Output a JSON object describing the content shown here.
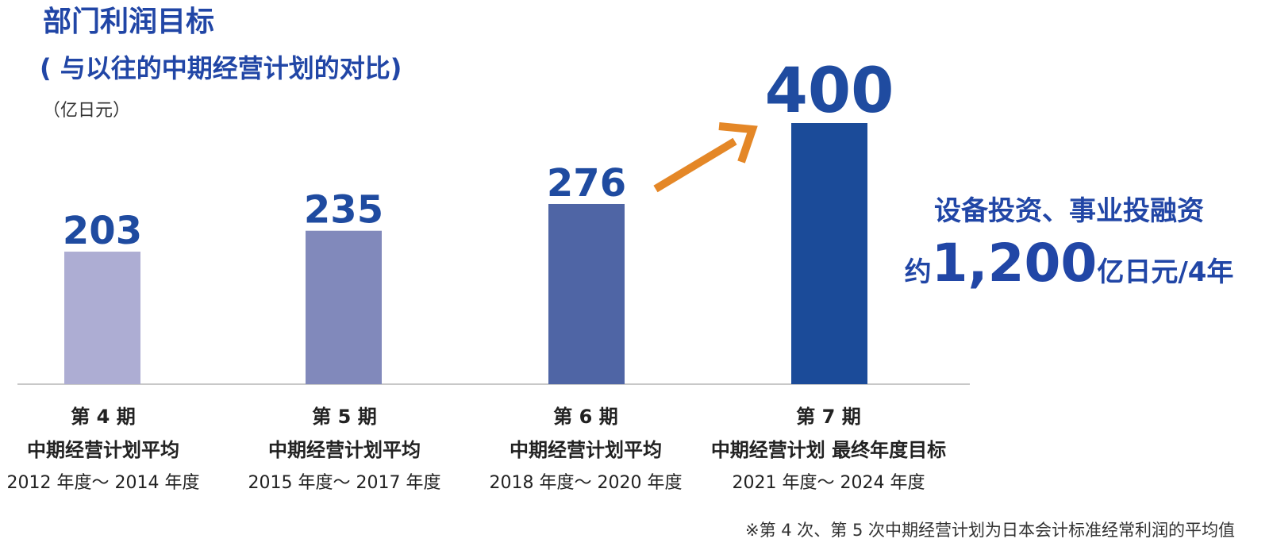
{
  "header": {
    "title": "部门利润目标",
    "subtitle": "( 与以往的中期经营计划的对比)",
    "unit": "（亿日元）"
  },
  "chart_data": {
    "type": "bar",
    "title": "部门利润目标",
    "subtitle": "( 与以往的中期经营计划的对比)",
    "unit": "（亿日元）",
    "categories": [
      {
        "line1": "第 4 期",
        "line2": "中期经营计划平均",
        "line3": "2012 年度～ 2014 年度"
      },
      {
        "line1": "第 5 期",
        "line2": "中期经营计划平均",
        "line3": "2015 年度～ 2017 年度"
      },
      {
        "line1": "第 6 期",
        "line2": "中期经营计划平均",
        "line3": "2018 年度～ 2020 年度"
      },
      {
        "line1": "第 7 期",
        "line2": "中期经营计划 最终年度目标",
        "line3": "2021 年度～ 2024 年度"
      }
    ],
    "values": [
      203,
      235,
      276,
      400
    ],
    "value_labels": [
      "203",
      "235",
      "276",
      "400"
    ],
    "bar_colors": [
      "#adadd3",
      "#8189bb",
      "#4f65a5",
      "#1b4b99"
    ],
    "label_color": "#1f4ba0",
    "arrow_color": "#e48727",
    "axis_color": "#c8c8c8",
    "ylim": [
      0,
      400
    ],
    "grid": false,
    "legend": "none"
  },
  "callout": {
    "line1": "设备投资、事业投融资",
    "prefix": "约",
    "amount": "1,200",
    "suffix": "亿日元/4年"
  },
  "footnote": "※第 4 次、第 5 次中期经营计划为日本会计标准经常利润的平均值",
  "colors": {
    "title": "#2146a6",
    "text": "#222222"
  }
}
